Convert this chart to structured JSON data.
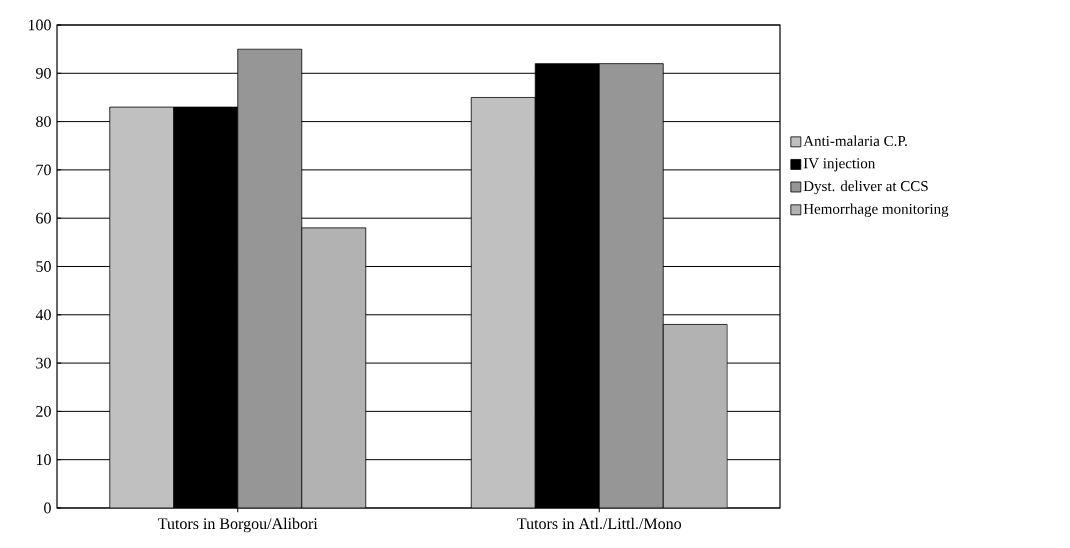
{
  "chart_data": {
    "type": "bar",
    "categories": [
      "Tutors in Borgou/Alibori",
      "Tutors in Atl./Littl./Mono"
    ],
    "series": [
      {
        "name": "Anti-malaria C.P.",
        "color": "#c0c0c0",
        "values": [
          83,
          85
        ]
      },
      {
        "name": "IV injection",
        "color": "#000000",
        "values": [
          83,
          92
        ]
      },
      {
        "name": "Dyst. deliver at CCS",
        "color": "#969696",
        "values": [
          95,
          92
        ]
      },
      {
        "name": "Hemorrhage monitoring",
        "color": "#b2b2b2",
        "values": [
          58,
          38
        ]
      }
    ],
    "ylim": [
      0,
      100
    ],
    "yticks": [
      0,
      10,
      20,
      30,
      40,
      50,
      60,
      70,
      80,
      90,
      100
    ],
    "grid": "y",
    "legend": "right"
  }
}
